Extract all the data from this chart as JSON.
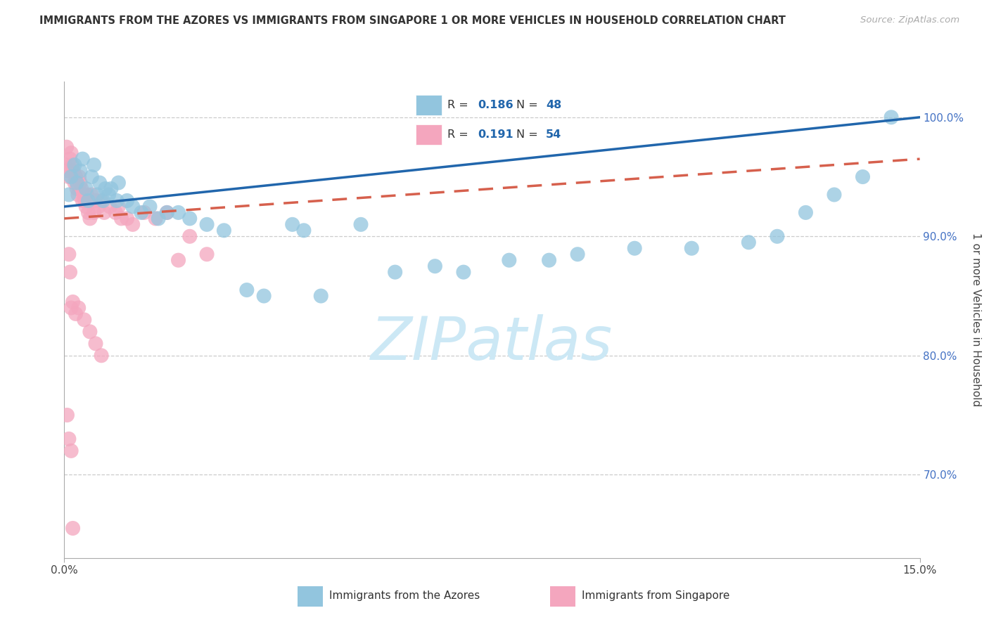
{
  "title": "IMMIGRANTS FROM THE AZORES VS IMMIGRANTS FROM SINGAPORE 1 OR MORE VEHICLES IN HOUSEHOLD CORRELATION CHART",
  "source": "Source: ZipAtlas.com",
  "ylabel": "1 or more Vehicles in Household",
  "ytick_labels": [
    "100.0%",
    "90.0%",
    "80.0%",
    "70.0%"
  ],
  "ytick_values": [
    100.0,
    90.0,
    80.0,
    70.0
  ],
  "xlim": [
    0.0,
    15.0
  ],
  "ylim": [
    63.0,
    103.0
  ],
  "legend_azores_R": "0.186",
  "legend_azores_N": "48",
  "legend_singapore_R": "0.191",
  "legend_singapore_N": "54",
  "azores_color": "#92c5de",
  "singapore_color": "#f4a6be",
  "azores_line_color": "#2166ac",
  "singapore_line_color": "#d6604d",
  "watermark_color": "#cce8f5",
  "azores_x": [
    0.08,
    0.12,
    0.18,
    0.22,
    0.28,
    0.32,
    0.38,
    0.42,
    0.48,
    0.52,
    0.58,
    0.62,
    0.68,
    0.72,
    0.78,
    0.82,
    0.92,
    0.95,
    1.1,
    1.2,
    1.35,
    1.5,
    1.65,
    1.8,
    2.0,
    2.2,
    2.5,
    2.8,
    3.2,
    3.5,
    4.0,
    4.2,
    4.5,
    5.2,
    5.8,
    6.5,
    7.0,
    7.8,
    8.5,
    9.0,
    10.0,
    11.0,
    12.0,
    12.5,
    13.0,
    13.5,
    14.0,
    14.5
  ],
  "azores_y": [
    93.5,
    95.0,
    96.0,
    94.5,
    95.5,
    96.5,
    94.0,
    93.0,
    95.0,
    96.0,
    93.5,
    94.5,
    93.0,
    94.0,
    93.5,
    94.0,
    93.0,
    94.5,
    93.0,
    92.5,
    92.0,
    92.5,
    91.5,
    92.0,
    92.0,
    91.5,
    91.0,
    90.5,
    85.5,
    85.0,
    91.0,
    90.5,
    85.0,
    91.0,
    87.0,
    87.5,
    87.0,
    88.0,
    88.0,
    88.5,
    89.0,
    89.0,
    89.5,
    90.0,
    92.0,
    93.5,
    95.0,
    100.0
  ],
  "singapore_x": [
    0.02,
    0.04,
    0.06,
    0.08,
    0.1,
    0.12,
    0.14,
    0.16,
    0.18,
    0.2,
    0.22,
    0.24,
    0.26,
    0.28,
    0.3,
    0.32,
    0.34,
    0.36,
    0.38,
    0.4,
    0.42,
    0.45,
    0.48,
    0.52,
    0.55,
    0.6,
    0.65,
    0.7,
    0.8,
    0.9,
    0.95,
    1.0,
    1.1,
    1.2,
    1.4,
    1.6,
    1.8,
    2.0,
    2.2,
    2.5,
    0.08,
    0.1,
    0.12,
    0.15,
    0.2,
    0.25,
    0.35,
    0.45,
    0.55,
    0.65,
    0.05,
    0.08,
    0.12,
    0.15
  ],
  "singapore_y": [
    96.0,
    97.5,
    95.5,
    95.0,
    96.5,
    97.0,
    96.0,
    95.5,
    94.5,
    95.0,
    94.0,
    93.5,
    95.0,
    94.5,
    94.0,
    93.0,
    93.5,
    93.0,
    92.5,
    93.5,
    92.0,
    91.5,
    93.5,
    92.0,
    93.0,
    92.5,
    93.0,
    92.0,
    92.5,
    92.0,
    92.5,
    91.5,
    91.5,
    91.0,
    92.0,
    91.5,
    92.0,
    88.0,
    90.0,
    88.5,
    88.5,
    87.0,
    84.0,
    84.5,
    83.5,
    84.0,
    83.0,
    82.0,
    81.0,
    80.0,
    75.0,
    73.0,
    72.0,
    65.5
  ],
  "az_line_x0": 0.0,
  "az_line_y0": 92.5,
  "az_line_x1": 15.0,
  "az_line_y1": 100.0,
  "sg_line_x0": 0.0,
  "sg_line_y0": 91.5,
  "sg_line_x1": 15.0,
  "sg_line_y1": 96.5
}
